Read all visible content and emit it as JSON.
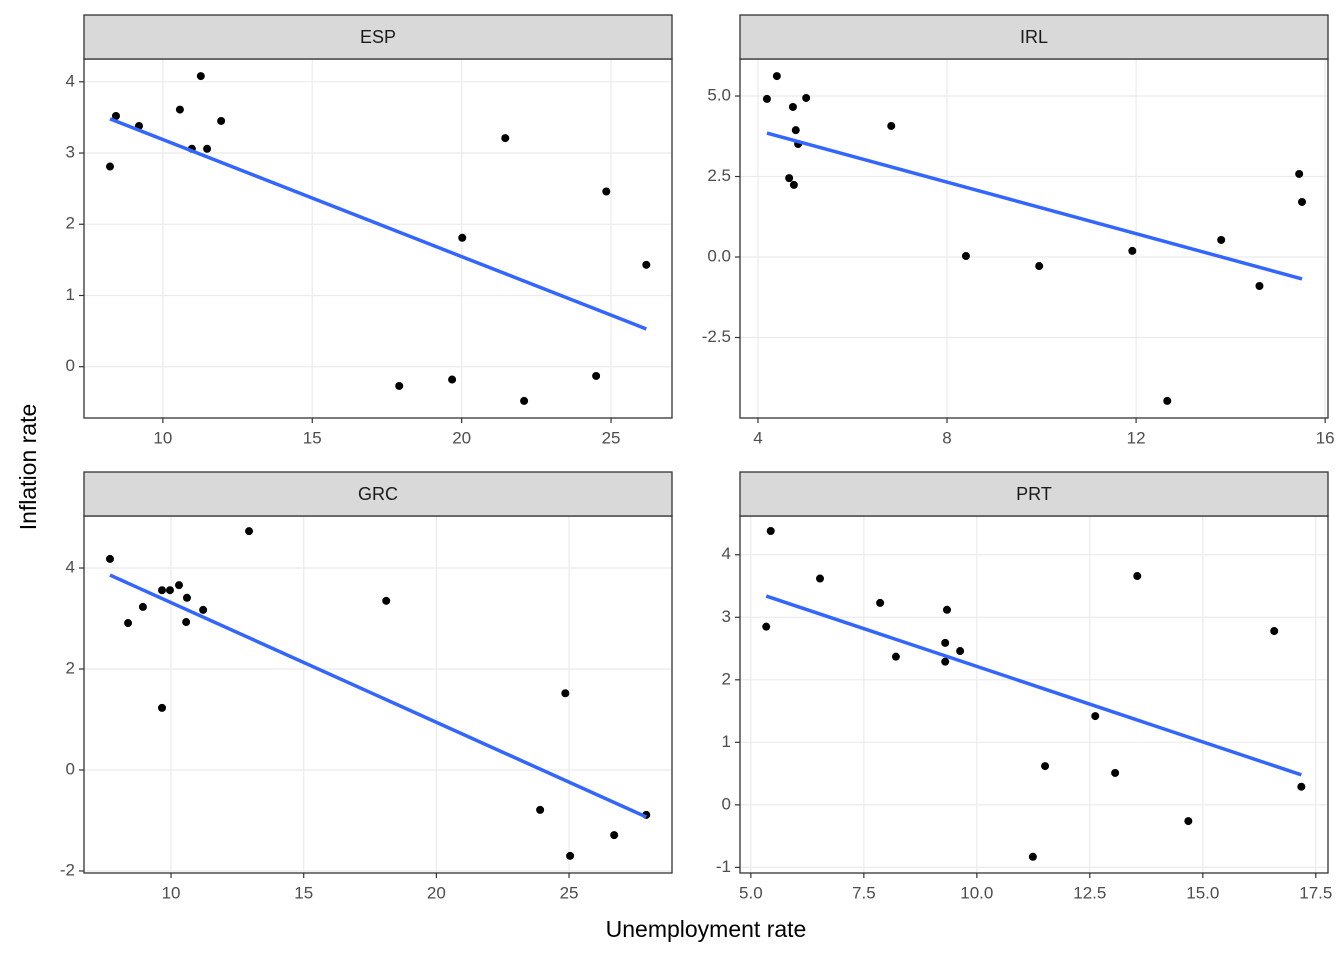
{
  "xlabel": "Unemployment rate",
  "ylabel": "Inflation rate",
  "chart_data": [
    {
      "type": "scatter",
      "title": "ESP",
      "color": "#000000",
      "grid": true,
      "x": [
        8.23,
        8.43,
        9.2,
        10.57,
        10.97,
        11.27,
        11.48,
        11.95,
        17.91,
        19.68,
        20.02,
        21.46,
        22.09,
        24.5,
        24.84,
        26.18
      ],
      "y": [
        2.81,
        3.52,
        3.38,
        3.61,
        3.06,
        4.08,
        3.06,
        3.45,
        -0.27,
        -0.18,
        1.81,
        3.21,
        -0.48,
        -0.13,
        2.46,
        1.43
      ],
      "fit": {
        "x": [
          8.23,
          26.18
        ],
        "y": [
          3.48,
          0.53
        ],
        "color": "#3366ff"
      },
      "xlim": [
        7.36,
        27.04
      ],
      "ylim": [
        -0.72,
        4.32
      ],
      "xticks": [
        10,
        15,
        20,
        25
      ],
      "yticks": [
        0,
        1,
        2,
        3,
        4
      ]
    },
    {
      "type": "scatter",
      "title": "IRL",
      "color": "#000000",
      "grid": true,
      "x": [
        4.19,
        4.4,
        4.66,
        4.74,
        4.76,
        4.8,
        4.85,
        5.02,
        6.82,
        8.4,
        9.95,
        11.92,
        12.66,
        13.8,
        14.61,
        15.45,
        15.51
      ],
      "y": [
        4.91,
        5.62,
        2.45,
        4.66,
        2.24,
        3.94,
        3.51,
        4.94,
        4.07,
        0.03,
        -0.28,
        0.19,
        -4.47,
        0.53,
        -0.9,
        2.58,
        1.71
      ],
      "fit": {
        "x": [
          4.19,
          15.51
        ],
        "y": [
          3.85,
          -0.68
        ],
        "color": "#3366ff"
      },
      "xlim": [
        3.62,
        16.06
      ],
      "ylim": [
        -5.0,
        6.15
      ],
      "xticks": [
        4,
        8,
        12,
        16
      ],
      "yticks": [
        -2.5,
        {
          "value": 0,
          "label": "0.0"
        },
        2.5,
        {
          "value": 5,
          "label": "5.0"
        }
      ]
    },
    {
      "type": "scatter",
      "title": "GRC",
      "color": "#000000",
      "grid": true,
      "x": [
        7.7,
        8.38,
        8.94,
        9.66,
        9.66,
        9.96,
        10.3,
        10.6,
        10.57,
        11.21,
        12.94,
        18.11,
        23.91,
        24.86,
        25.04,
        26.7,
        27.91
      ],
      "y": [
        4.18,
        2.91,
        3.23,
        1.23,
        3.56,
        3.56,
        3.66,
        3.41,
        2.93,
        3.17,
        4.73,
        3.35,
        -0.79,
        1.52,
        -1.7,
        -1.29,
        -0.89
      ],
      "fit": {
        "x": [
          7.7,
          27.91
        ],
        "y": [
          3.86,
          -0.93
        ],
        "color": "#3366ff"
      },
      "xlim": [
        6.72,
        28.88
      ],
      "ylim": [
        -2.04,
        5.03
      ],
      "xticks": [
        10,
        15,
        20,
        25
      ],
      "yticks": [
        -2,
        0,
        2,
        4
      ]
    },
    {
      "type": "scatter",
      "title": "PRT",
      "color": "#000000",
      "grid": true,
      "x": [
        5.34,
        5.44,
        6.53,
        7.86,
        8.21,
        9.3,
        9.3,
        9.34,
        9.63,
        11.24,
        11.51,
        12.62,
        13.06,
        13.55,
        14.68,
        16.58,
        17.18
      ],
      "y": [
        2.85,
        4.38,
        3.62,
        3.23,
        2.37,
        2.29,
        2.59,
        3.12,
        2.46,
        -0.83,
        0.62,
        1.42,
        0.51,
        3.66,
        -0.26,
        2.78,
        0.29
      ],
      "fit": {
        "x": [
          5.34,
          17.18
        ],
        "y": [
          3.34,
          0.48
        ],
        "color": "#3366ff"
      },
      "xlim": [
        4.76,
        17.77
      ],
      "ylim": [
        -1.09,
        4.62
      ],
      "xticks": [
        {
          "value": 5,
          "label": "5.0"
        },
        7.5,
        {
          "value": 10,
          "label": "10.0"
        },
        12.5,
        {
          "value": 15,
          "label": "15.0"
        },
        17.5
      ],
      "yticks": [
        -1,
        0,
        1,
        2,
        3,
        4
      ]
    }
  ]
}
